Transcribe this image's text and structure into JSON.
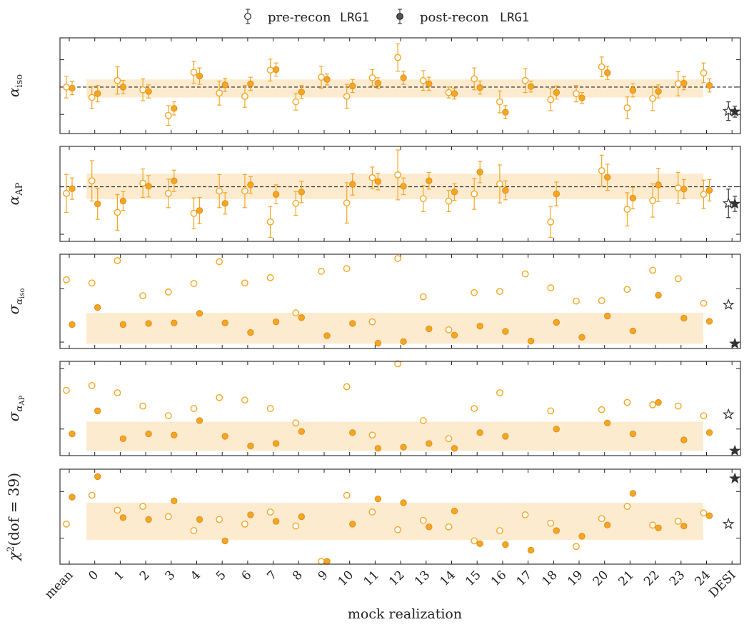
{
  "colors": {
    "accent": "#f5a623",
    "band": "#fdebd0",
    "desi": "#333333",
    "axis": "#222222"
  },
  "legend": {
    "pre_label": "pre-recon",
    "pre_tracer": "LRG1",
    "post_label": "post-recon",
    "post_tracer": "LRG1"
  },
  "x_axis": {
    "label": "mock realization",
    "categories": [
      "mean",
      "0",
      "1",
      "2",
      "3",
      "4",
      "5",
      "6",
      "7",
      "8",
      "9",
      "10",
      "11",
      "12",
      "13",
      "14",
      "15",
      "16",
      "17",
      "18",
      "19",
      "20",
      "21",
      "22",
      "23",
      "24",
      "DESI"
    ]
  },
  "chart_data": [
    {
      "type": "scatter",
      "panel": "alpha_iso",
      "ylabel": "α_iso",
      "ylim": [
        0.915,
        1.09
      ],
      "yticks": [
        "0.95",
        "1.00",
        "1.05"
      ],
      "reference_line": 1.0,
      "band": [
        0.981,
        1.014
      ],
      "pre": [
        1.0,
        0.981,
        1.012,
        0.995,
        0.948,
        1.027,
        0.989,
        0.983,
        1.031,
        0.973,
        1.018,
        0.983,
        1.017,
        1.054,
        1.012,
        0.99,
        1.015,
        0.973,
        1.012,
        0.977,
        0.988,
        1.037,
        0.962,
        0.979,
        1.006,
        1.026
      ],
      "pre_err": [
        0.02,
        0.02,
        0.025,
        0.02,
        0.018,
        0.02,
        0.022,
        0.02,
        0.02,
        0.015,
        0.02,
        0.022,
        0.015,
        0.025,
        0.018,
        0.01,
        0.02,
        0.02,
        0.022,
        0.02,
        0.015,
        0.018,
        0.02,
        0.022,
        0.022,
        0.018
      ],
      "post": [
        0.998,
        0.988,
        1.0,
        0.992,
        0.961,
        1.02,
        1.004,
        1.006,
        1.032,
        0.991,
        1.014,
        1.002,
        1.007,
        1.017,
        1.006,
        0.988,
        0.999,
        0.954,
        1.001,
        0.99,
        0.98,
        1.026,
        0.994,
        0.992,
        1.007,
        1.003
      ],
      "post_err": [
        0.012,
        0.015,
        0.012,
        0.012,
        0.012,
        0.015,
        0.012,
        0.012,
        0.012,
        0.012,
        0.01,
        0.012,
        0.01,
        0.012,
        0.012,
        0.01,
        0.012,
        0.012,
        0.01,
        0.012,
        0.01,
        0.012,
        0.012,
        0.012,
        0.012,
        0.012
      ],
      "desi_pre": 0.956,
      "desi_pre_err": 0.017,
      "desi_post": 0.955,
      "desi_post_err": 0.01
    },
    {
      "type": "scatter",
      "panel": "alpha_AP",
      "ylabel": "α_AP",
      "ylim": [
        0.77,
        1.17
      ],
      "yticks": [
        "0.8",
        "1.0"
      ],
      "reference_line": 1.0,
      "band": [
        0.948,
        1.055
      ],
      "pre": [
        0.972,
        1.025,
        0.892,
        1.015,
        0.972,
        0.888,
        0.982,
        0.982,
        0.852,
        0.93,
        null,
        0.932,
        1.038,
        1.05,
        0.95,
        0.94,
        0.97,
        1.012,
        null,
        0.852,
        null,
        1.068,
        0.905,
        0.942,
        0.995,
        0.968
      ],
      "pre_err": [
        0.08,
        0.085,
        0.075,
        0.06,
        0.06,
        0.065,
        0.07,
        0.07,
        0.065,
        0.05,
        null,
        0.085,
        0.045,
        0.105,
        0.055,
        0.045,
        0.065,
        0.08,
        null,
        0.065,
        null,
        0.065,
        0.07,
        0.07,
        0.065,
        0.06
      ],
      "post": [
        0.992,
        0.928,
        0.94,
        1.002,
        1.025,
        0.9,
        0.93,
        1.008,
        0.968,
        0.978,
        null,
        1.01,
        1.022,
        1.002,
        1.025,
        0.978,
        1.062,
        0.985,
        null,
        0.97,
        null,
        1.04,
        0.952,
        1.008,
        0.99,
        0.985
      ],
      "post_err": [
        0.045,
        0.065,
        0.04,
        0.045,
        0.045,
        0.055,
        0.045,
        0.035,
        0.04,
        0.045,
        null,
        0.045,
        0.035,
        0.035,
        0.035,
        0.035,
        0.045,
        0.04,
        null,
        0.05,
        null,
        0.055,
        0.045,
        0.07,
        0.04,
        0.045
      ],
      "desi_pre": 0.93,
      "desi_pre_err": 0.06,
      "desi_post": 0.928,
      "desi_post_err": 0.032
    },
    {
      "type": "scatter",
      "panel": "sigma_alpha_iso",
      "ylabel": "σ_α_iso",
      "ylim": [
        0.0088,
        0.0265
      ],
      "yticks": [
        "0.01",
        "0.02"
      ],
      "band": [
        0.0097,
        0.0155
      ],
      "pre": [
        0.0217,
        0.0211,
        0.0253,
        0.0187,
        0.0194,
        0.021,
        0.0251,
        0.0211,
        0.0221,
        0.0155,
        0.0233,
        0.0238,
        0.0138,
        0.0257,
        0.0185,
        0.0123,
        0.0193,
        0.0195,
        0.0228,
        0.0202,
        0.0177,
        0.0178,
        0.0199,
        0.0235,
        0.0219,
        0.0173
      ],
      "post": [
        0.0133,
        0.0165,
        0.0133,
        0.0135,
        0.0136,
        0.0154,
        0.0136,
        0.0118,
        0.0138,
        0.0146,
        0.0112,
        0.0135,
        0.0098,
        0.0101,
        0.0125,
        0.0113,
        0.013,
        0.012,
        0.0102,
        0.0137,
        0.0109,
        0.0149,
        0.0121,
        0.0188,
        0.0145,
        0.0139
      ],
      "desi_pre": 0.017,
      "desi_post": 0.0097
    },
    {
      "type": "scatter",
      "panel": "sigma_alpha_AP",
      "ylabel": "σ_α_AP",
      "ylim": [
        0.028,
        0.106
      ],
      "yticks": [
        "0.05",
        "0.10"
      ],
      "band": [
        0.032,
        0.056
      ],
      "pre": [
        0.082,
        0.086,
        0.08,
        0.069,
        0.061,
        0.067,
        0.076,
        0.074,
        0.067,
        0.055,
        null,
        0.085,
        0.045,
        0.104,
        0.057,
        0.042,
        0.067,
        0.08,
        null,
        0.065,
        null,
        0.066,
        0.072,
        0.07,
        0.069,
        0.061
      ],
      "post": [
        0.046,
        0.065,
        0.042,
        0.046,
        0.045,
        0.057,
        0.044,
        0.036,
        0.038,
        0.048,
        null,
        0.047,
        0.034,
        0.035,
        0.038,
        0.034,
        0.047,
        0.044,
        null,
        0.05,
        null,
        0.055,
        0.046,
        0.072,
        0.041,
        0.047
      ],
      "desi_pre": 0.062,
      "desi_post": 0.032
    },
    {
      "type": "scatter",
      "panel": "chi2",
      "ylabel": "χ²(dof = 39)",
      "ylim": [
        11,
        62
      ],
      "yticks": [
        "25",
        "50"
      ],
      "band": [
        24,
        44
      ],
      "pre": [
        32.5,
        48.0,
        40.0,
        42.0,
        36.5,
        29.0,
        35.0,
        32.5,
        39.0,
        31.5,
        12.5,
        48.0,
        39.0,
        29.5,
        34.5,
        31.0,
        23.5,
        29.0,
        37.5,
        33.0,
        20.5,
        35.5,
        42.0,
        32.0,
        34.0,
        38.5
      ],
      "post": [
        47.0,
        58.0,
        36.0,
        35.0,
        45.0,
        35.0,
        23.5,
        37.5,
        34.0,
        36.5,
        12.5,
        32.5,
        46.0,
        44.0,
        31.0,
        39.5,
        22.0,
        21.5,
        18.5,
        29.0,
        26.0,
        32.0,
        49.0,
        30.5,
        31.5,
        37.0
      ],
      "desi_pre": 32.5,
      "desi_post": 57.0
    }
  ]
}
